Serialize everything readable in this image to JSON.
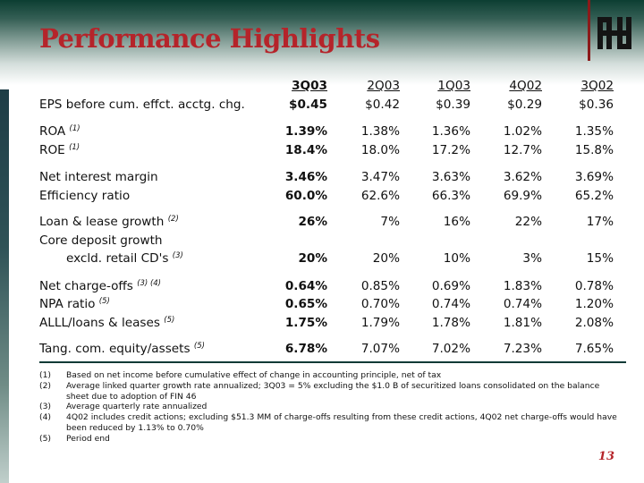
{
  "title": "Performance Highlights",
  "page_number": "13",
  "columns": [
    "3Q03",
    "2Q03",
    "1Q03",
    "4Q02",
    "3Q02"
  ],
  "rows": [
    {
      "label": "EPS before cum. effct. acctg. chg.",
      "note": "",
      "values": [
        "$0.45",
        "$0.42",
        "$0.39",
        "$0.29",
        "$0.36"
      ]
    },
    {
      "label": "ROA",
      "note": "(1)",
      "values": [
        "1.39%",
        "1.38%",
        "1.36%",
        "1.02%",
        "1.35%"
      ]
    },
    {
      "label": "ROE",
      "note": "(1)",
      "values": [
        "18.4%",
        "18.0%",
        "17.2%",
        "12.7%",
        "15.8%"
      ]
    },
    {
      "label": "Net interest margin",
      "note": "",
      "values": [
        "3.46%",
        "3.47%",
        "3.63%",
        "3.62%",
        "3.69%"
      ]
    },
    {
      "label": "Efficiency ratio",
      "note": "",
      "values": [
        "60.0%",
        "62.6%",
        "66.3%",
        "69.9%",
        "65.2%"
      ]
    },
    {
      "label": "Loan & lease growth",
      "note": "(2)",
      "values": [
        "26%",
        "7%",
        "16%",
        "22%",
        "17%"
      ]
    },
    {
      "label": "Core deposit growth",
      "label2": "excld. retail CD's",
      "note": "(3)",
      "values": [
        "20%",
        "20%",
        "10%",
        "3%",
        "15%"
      ]
    },
    {
      "label": "Net charge-offs",
      "note": "(3) (4)",
      "values": [
        "0.64%",
        "0.85%",
        "0.69%",
        "1.83%",
        "0.78%"
      ]
    },
    {
      "label": "NPA ratio",
      "note": "(5)",
      "values": [
        "0.65%",
        "0.70%",
        "0.74%",
        "0.74%",
        "1.20%"
      ]
    },
    {
      "label": "ALLL/loans & leases",
      "note": "(5)",
      "values": [
        "1.75%",
        "1.79%",
        "1.78%",
        "1.81%",
        "2.08%"
      ]
    },
    {
      "label": "Tang. com. equity/assets",
      "note": "(5)",
      "values": [
        "6.78%",
        "7.07%",
        "7.02%",
        "7.23%",
        "7.65%"
      ]
    }
  ],
  "footnotes": [
    {
      "key": "(1)",
      "text": "Based on net income before cumulative effect of change in accounting principle, net of tax"
    },
    {
      "key": "(2)",
      "text": "Average linked quarter growth rate annualized; 3Q03 = 5% excluding the $1.0 B of securitized loans consolidated on the balance sheet due to adoption of FIN 46"
    },
    {
      "key": "(3)",
      "text": "Average quarterly rate annualized"
    },
    {
      "key": "(4)",
      "text": "4Q02 includes credit actions; excluding $51.3 MM of charge-offs resulting from these credit actions, 4Q02 net charge-offs would have been reduced by 1.13% to 0.70%"
    },
    {
      "key": "(5)",
      "text": "Period end"
    }
  ]
}
